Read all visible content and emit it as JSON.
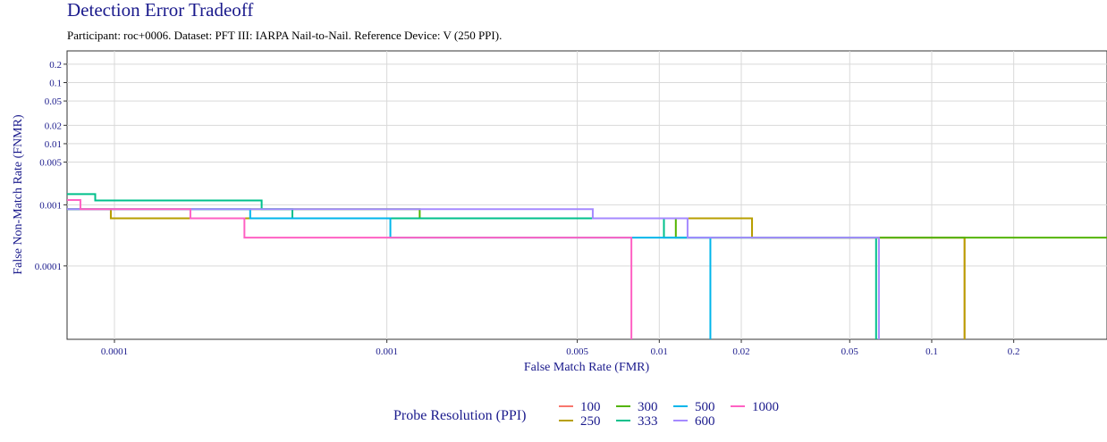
{
  "chart_data": {
    "type": "step",
    "title": "Detection Error Tradeoff",
    "subtitle": "Participant: roc+0006. Dataset: PFT III: IARPA Nail-to-Nail. Reference Device: V (250 PPI).",
    "x_label": "False Match Rate (FMR)",
    "y_label": "False Non-Match Rate (FNMR)",
    "legend_title": "Probe Resolution (PPI)",
    "xscale": "log",
    "yscale": "log",
    "grid": true,
    "xlim": [
      6.7e-05,
      0.44
    ],
    "ylim": [
      6.3e-06,
      0.33
    ],
    "xticks": [
      0.0001,
      0.001,
      0.005,
      0.01,
      0.02,
      0.05,
      0.1,
      0.2
    ],
    "yticks": [
      0.0001,
      0.001,
      0.005,
      0.01,
      0.02,
      0.05,
      0.1,
      0.2
    ],
    "series": [
      {
        "name": "100",
        "color": "#F8766D",
        "x": [
          6.7e-05,
          9.7e-05,
          0.0219,
          0.132
        ],
        "values": [
          0.00085,
          0.0006,
          0.00029,
          1e-06
        ]
      },
      {
        "name": "250",
        "color": "#B79F00",
        "x": [
          6.7e-05,
          9.7e-05,
          0.0219,
          0.132
        ],
        "values": [
          0.00085,
          0.0006,
          0.00029,
          1e-06
        ]
      },
      {
        "name": "300",
        "color": "#53B400",
        "x": [
          6.7e-05,
          0.00132,
          0.0115,
          0.44
        ],
        "values": [
          0.00085,
          0.0006,
          0.00029,
          0.00029
        ]
      },
      {
        "name": "333",
        "color": "#00C08B",
        "x": [
          6.7e-05,
          8.5e-05,
          0.000347,
          0.00045,
          0.0104,
          0.0625
        ],
        "values": [
          0.0015,
          0.00118,
          0.00085,
          0.0006,
          0.00029,
          1e-06
        ]
      },
      {
        "name": "500",
        "color": "#00B6EB",
        "x": [
          6.7e-05,
          0.000315,
          0.00103,
          0.0154
        ],
        "values": [
          0.00085,
          0.0006,
          0.00029,
          1e-06
        ]
      },
      {
        "name": "600",
        "color": "#A58AFF",
        "x": [
          6.7e-05,
          0.0057,
          0.0127,
          0.064
        ],
        "values": [
          0.00085,
          0.0006,
          0.00029,
          1e-06
        ]
      },
      {
        "name": "1000",
        "color": "#FF61C3",
        "x": [
          6.7e-05,
          7.5e-05,
          0.00019,
          0.0003,
          0.0079
        ],
        "values": [
          0.0012,
          0.00085,
          0.0006,
          0.00029,
          1e-06
        ]
      }
    ]
  }
}
